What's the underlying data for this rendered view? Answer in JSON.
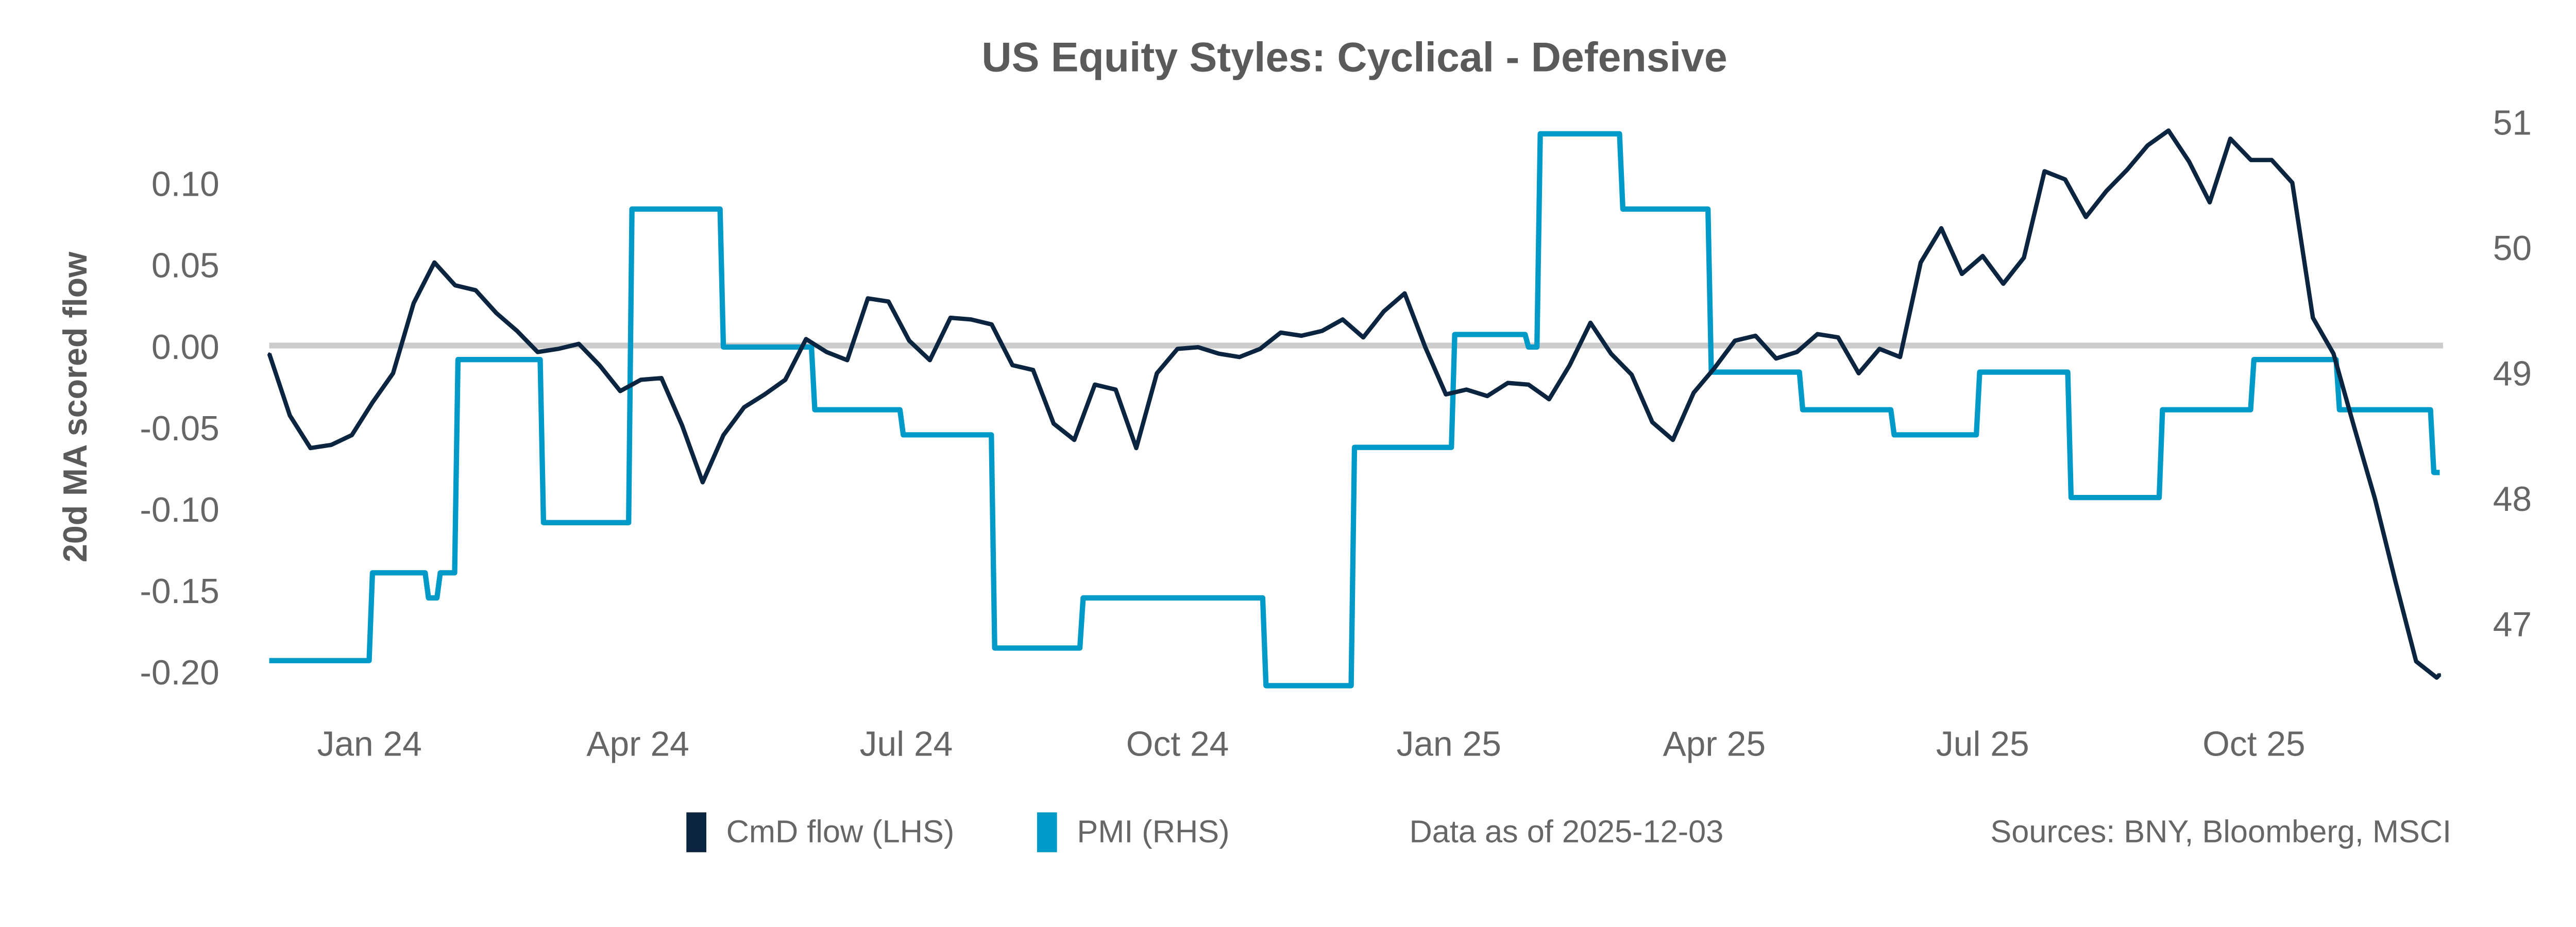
{
  "chart_data": {
    "type": "line",
    "title": "US Equity Styles:  Cyclical - Defensive",
    "ylabel": "20d MA scored flow",
    "ylim": [
      -0.22,
      0.145
    ],
    "y2lim": [
      46.3,
      51.2
    ],
    "yticks": [
      "0.10",
      "0.05",
      "0.00",
      "-0.05",
      "-0.10",
      "-0.15",
      "-0.20"
    ],
    "y2ticks": [
      "51",
      "50",
      "49",
      "48",
      "47"
    ],
    "xticks": [
      {
        "date": "2024-01-01",
        "label": "Jan 24"
      },
      {
        "date": "2024-04-01",
        "label": "Apr 24"
      },
      {
        "date": "2024-07-01",
        "label": "Jul 24"
      },
      {
        "date": "2024-10-01",
        "label": "Oct 24"
      },
      {
        "date": "2025-01-01",
        "label": "Jan 25"
      },
      {
        "date": "2025-04-01",
        "label": "Apr 25"
      },
      {
        "date": "2025-07-01",
        "label": "Jul 25"
      },
      {
        "date": "2025-10-01",
        "label": "Oct 25"
      }
    ],
    "xlim": [
      "2023-11-28",
      "2025-12-03"
    ],
    "zero_line": true,
    "grid": false,
    "legend_position": "bottom",
    "series": [
      {
        "name": "CmD flow (LHS)",
        "axis": "left",
        "color": "#0b2541",
        "points": [
          [
            "2023-11-28",
            -0.005
          ],
          [
            "2023-12-05",
            -0.043
          ],
          [
            "2023-12-12",
            -0.063
          ],
          [
            "2023-12-19",
            -0.061
          ],
          [
            "2023-12-26",
            -0.055
          ],
          [
            "2024-01-02",
            -0.035
          ],
          [
            "2024-01-09",
            -0.017
          ],
          [
            "2024-01-16",
            0.026
          ],
          [
            "2024-01-23",
            0.051
          ],
          [
            "2024-01-30",
            0.037
          ],
          [
            "2024-02-06",
            0.034
          ],
          [
            "2024-02-13",
            0.02
          ],
          [
            "2024-02-20",
            0.009
          ],
          [
            "2024-02-27",
            -0.004
          ],
          [
            "2024-03-05",
            -0.002
          ],
          [
            "2024-03-12",
            0.001
          ],
          [
            "2024-03-19",
            -0.012
          ],
          [
            "2024-03-26",
            -0.028
          ],
          [
            "2024-04-02",
            -0.021
          ],
          [
            "2024-04-09",
            -0.02
          ],
          [
            "2024-04-16",
            -0.049
          ],
          [
            "2024-04-23",
            -0.084
          ],
          [
            "2024-04-30",
            -0.055
          ],
          [
            "2024-05-07",
            -0.038
          ],
          [
            "2024-05-14",
            -0.03
          ],
          [
            "2024-05-21",
            -0.021
          ],
          [
            "2024-05-28",
            0.004
          ],
          [
            "2024-06-04",
            -0.004
          ],
          [
            "2024-06-11",
            -0.009
          ],
          [
            "2024-06-18",
            0.029
          ],
          [
            "2024-06-25",
            0.027
          ],
          [
            "2024-07-02",
            0.003
          ],
          [
            "2024-07-09",
            -0.009
          ],
          [
            "2024-07-16",
            0.017
          ],
          [
            "2024-07-23",
            0.016
          ],
          [
            "2024-07-30",
            0.013
          ],
          [
            "2024-08-06",
            -0.012
          ],
          [
            "2024-08-13",
            -0.015
          ],
          [
            "2024-08-20",
            -0.048
          ],
          [
            "2024-08-27",
            -0.058
          ],
          [
            "2024-09-03",
            -0.024
          ],
          [
            "2024-09-10",
            -0.027
          ],
          [
            "2024-09-17",
            -0.063
          ],
          [
            "2024-09-24",
            -0.017
          ],
          [
            "2024-10-01",
            -0.002
          ],
          [
            "2024-10-08",
            -0.001
          ],
          [
            "2024-10-15",
            -0.005
          ],
          [
            "2024-10-22",
            -0.007
          ],
          [
            "2024-10-29",
            -0.002
          ],
          [
            "2024-11-05",
            0.008
          ],
          [
            "2024-11-12",
            0.006
          ],
          [
            "2024-11-19",
            0.009
          ],
          [
            "2024-11-26",
            0.016
          ],
          [
            "2024-12-03",
            0.005
          ],
          [
            "2024-12-10",
            0.021
          ],
          [
            "2024-12-17",
            0.032
          ],
          [
            "2024-12-24",
            -0.001
          ],
          [
            "2024-12-31",
            -0.03
          ],
          [
            "2025-01-07",
            -0.027
          ],
          [
            "2025-01-14",
            -0.031
          ],
          [
            "2025-01-21",
            -0.023
          ],
          [
            "2025-01-28",
            -0.024
          ],
          [
            "2025-02-04",
            -0.033
          ],
          [
            "2025-02-11",
            -0.012
          ],
          [
            "2025-02-18",
            0.014
          ],
          [
            "2025-02-25",
            -0.005
          ],
          [
            "2025-03-04",
            -0.018
          ],
          [
            "2025-03-11",
            -0.047
          ],
          [
            "2025-03-18",
            -0.058
          ],
          [
            "2025-03-25",
            -0.029
          ],
          [
            "2025-04-01",
            -0.014
          ],
          [
            "2025-04-08",
            0.003
          ],
          [
            "2025-04-15",
            0.006
          ],
          [
            "2025-04-22",
            -0.008
          ],
          [
            "2025-04-29",
            -0.004
          ],
          [
            "2025-05-06",
            0.007
          ],
          [
            "2025-05-13",
            0.005
          ],
          [
            "2025-05-20",
            -0.017
          ],
          [
            "2025-05-27",
            -0.002
          ],
          [
            "2025-06-03",
            -0.007
          ],
          [
            "2025-06-10",
            0.051
          ],
          [
            "2025-06-17",
            0.072
          ],
          [
            "2025-06-24",
            0.044
          ],
          [
            "2025-07-01",
            0.055
          ],
          [
            "2025-07-08",
            0.038
          ],
          [
            "2025-07-15",
            0.054
          ],
          [
            "2025-07-22",
            0.107
          ],
          [
            "2025-07-29",
            0.102
          ],
          [
            "2025-08-05",
            0.079
          ],
          [
            "2025-08-12",
            0.095
          ],
          [
            "2025-08-19",
            0.108
          ],
          [
            "2025-08-26",
            0.123
          ],
          [
            "2025-09-02",
            0.132
          ],
          [
            "2025-09-09",
            0.113
          ],
          [
            "2025-09-16",
            0.088
          ],
          [
            "2025-09-23",
            0.127
          ],
          [
            "2025-09-30",
            0.114
          ],
          [
            "2025-10-07",
            0.114
          ],
          [
            "2025-10-14",
            0.1
          ],
          [
            "2025-10-21",
            0.017
          ],
          [
            "2025-10-28",
            -0.005
          ],
          [
            "2025-11-04",
            -0.05
          ],
          [
            "2025-11-11",
            -0.094
          ],
          [
            "2025-11-18",
            -0.145
          ],
          [
            "2025-11-25",
            -0.194
          ],
          [
            "2025-12-02",
            -0.204
          ],
          [
            "2025-12-03",
            -0.202
          ]
        ]
      },
      {
        "name": "PMI (RHS)",
        "axis": "right",
        "color": "#009ac8",
        "step": true,
        "points": [
          [
            "2023-11-28",
            46.7
          ],
          [
            "2024-01-02",
            47.4
          ],
          [
            "2024-01-21",
            47.2
          ],
          [
            "2024-01-25",
            47.4
          ],
          [
            "2024-01-31",
            49.1
          ],
          [
            "2024-02-29",
            47.8
          ],
          [
            "2024-03-30",
            50.3
          ],
          [
            "2024-04-30",
            49.2
          ],
          [
            "2024-05-31",
            48.7
          ],
          [
            "2024-06-30",
            48.5
          ],
          [
            "2024-07-31",
            46.8
          ],
          [
            "2024-08-30",
            47.2
          ],
          [
            "2024-10-31",
            46.5
          ],
          [
            "2024-11-30",
            48.4
          ],
          [
            "2025-01-03",
            49.3
          ],
          [
            "2025-01-28",
            49.2
          ],
          [
            "2025-02-01",
            50.9
          ],
          [
            "2025-03-01",
            50.3
          ],
          [
            "2025-03-31",
            49.0
          ],
          [
            "2025-05-01",
            48.7
          ],
          [
            "2025-06-01",
            48.5
          ],
          [
            "2025-06-30",
            49.0
          ],
          [
            "2025-07-31",
            48.0
          ],
          [
            "2025-08-31",
            48.7
          ],
          [
            "2025-10-01",
            49.1
          ],
          [
            "2025-10-30",
            48.7
          ],
          [
            "2025-12-01",
            48.2
          ],
          [
            "2025-12-03",
            48.2
          ]
        ]
      }
    ],
    "annotations": [
      "Data as of 2025-12-03",
      "Sources:  BNY, Bloomberg, MSCI"
    ]
  },
  "colors": {
    "zero_line": "#cccccc",
    "text": "#666666",
    "title": "#5a5a5a"
  }
}
